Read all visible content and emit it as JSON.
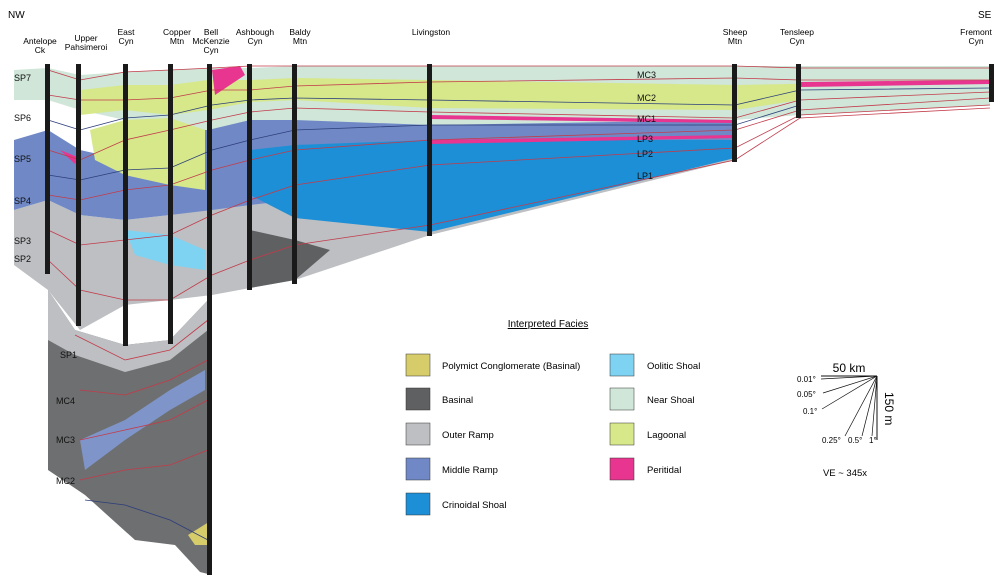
{
  "directions": {
    "left": "NW",
    "right": "SE"
  },
  "sections": [
    {
      "label": [
        "Antelope",
        "Ck"
      ]
    },
    {
      "label": [
        "Upper",
        "Pahsimeroi"
      ]
    },
    {
      "label": [
        "East",
        "Cyn"
      ]
    },
    {
      "label": [
        "Copper",
        "Mtn"
      ]
    },
    {
      "label": [
        "Bell",
        "McKenzie",
        "Cyn"
      ]
    },
    {
      "label": [
        "Ashbough",
        "Cyn"
      ]
    },
    {
      "label": [
        "Baldy",
        "Mtn"
      ]
    },
    {
      "label": [
        "Livingston"
      ]
    },
    {
      "label": [
        "Sheep",
        "Mtn"
      ]
    },
    {
      "label": [
        "Tensleep",
        "Cyn"
      ]
    },
    {
      "label": [
        "Fremont",
        "Cyn"
      ]
    }
  ],
  "sequences_left": [
    "SP7",
    "SP6",
    "SP5",
    "SP4",
    "SP3",
    "SP2"
  ],
  "sequences_lower": [
    "SP1",
    "MC4",
    "MC3",
    "MC2"
  ],
  "sequences_right": [
    "MC3",
    "MC2",
    "MC1",
    "LP3",
    "LP2",
    "LP1"
  ],
  "legend": {
    "title": "Interpreted Facies",
    "items": [
      {
        "label": "Polymict Conglomerate (Basinal)",
        "color": "#d6cc6a"
      },
      {
        "label": "Basinal",
        "color": "#5f6061"
      },
      {
        "label": "Outer Ramp",
        "color": "#bdbfc2"
      },
      {
        "label": "Middle Ramp",
        "color": "#7089c6"
      },
      {
        "label": "Crinoidal Shoal",
        "color": "#1d8fd6"
      },
      {
        "label": "Oolitic Shoal",
        "color": "#7fd3f2"
      },
      {
        "label": "Near Shoal",
        "color": "#cfe6d8"
      },
      {
        "label": "Lagoonal",
        "color": "#d6e88a"
      },
      {
        "label": "Peritidal",
        "color": "#e8358f"
      }
    ]
  },
  "scale": {
    "horizontal": "50 km",
    "vertical": "150 m",
    "angles": [
      "0.01°",
      "0.05°",
      "0.1°",
      "0.25°",
      "0.5°",
      "1°"
    ],
    "ve": "VE ~ 345x"
  }
}
